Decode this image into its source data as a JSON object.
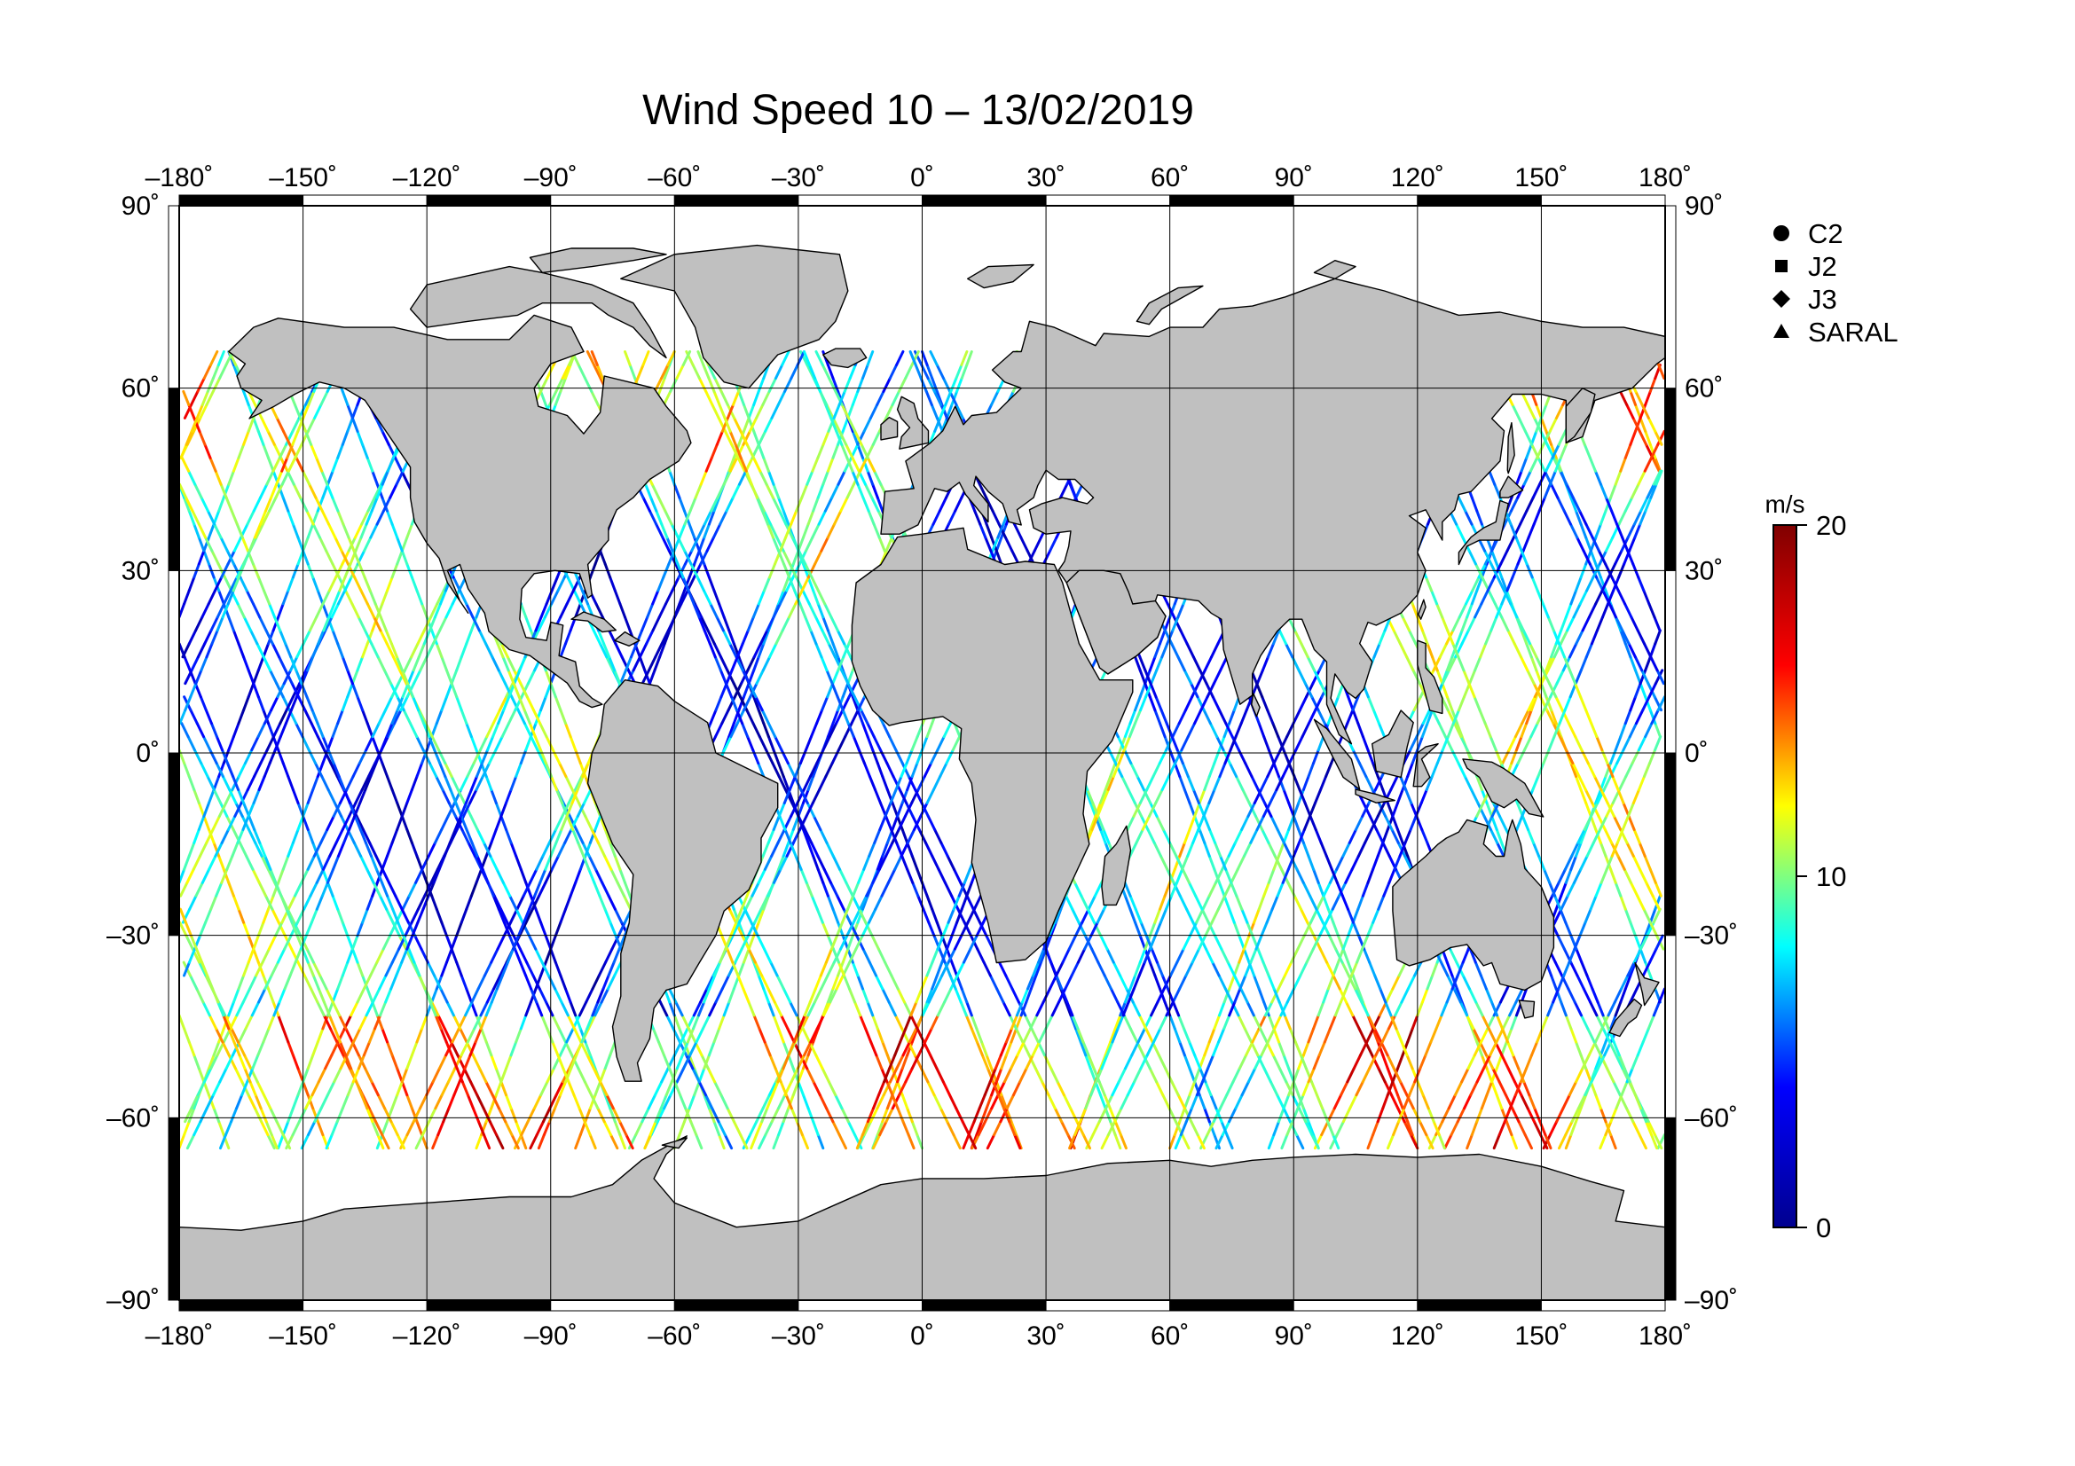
{
  "title": "Wind Speed 10 – 13/02/2019",
  "map": {
    "projection": "equirectangular",
    "lon_range": [
      -180,
      180
    ],
    "lat_range": [
      -90,
      90
    ],
    "lon_ticks": [
      -180,
      -150,
      -120,
      -90,
      -60,
      -30,
      0,
      30,
      60,
      90,
      120,
      150,
      180
    ],
    "lat_ticks": [
      -90,
      -60,
      -30,
      0,
      30,
      60,
      90
    ],
    "lon_tick_labels": [
      "–180˚",
      "–150˚",
      "–120˚",
      "–90˚",
      "–60˚",
      "–30˚",
      "0˚",
      "30˚",
      "60˚",
      "90˚",
      "120˚",
      "150˚",
      "180˚"
    ],
    "lat_tick_labels": [
      "–90˚",
      "–60˚",
      "–30˚",
      "0˚",
      "30˚",
      "60˚",
      "90˚"
    ],
    "grid": true,
    "land_color": "#c0c0c0",
    "coast_color": "#000000",
    "ocean_color": "#ffffff",
    "ice_edge_lat_south": -65
  },
  "legend": {
    "placement": "top-right",
    "items": [
      {
        "symbol": "circle",
        "label": "C2"
      },
      {
        "symbol": "square",
        "label": "J2"
      },
      {
        "symbol": "diamond",
        "label": "J3"
      },
      {
        "symbol": "triangle",
        "label": "SARAL"
      }
    ]
  },
  "colorbar": {
    "unit": "m/s",
    "min": 0,
    "max": 20,
    "tick_labels": [
      "0",
      "10",
      "20"
    ],
    "colormap": "jet",
    "stops": [
      "#00008f",
      "#0000ff",
      "#00ffff",
      "#ffff00",
      "#ff0000",
      "#800000"
    ]
  },
  "chart_data": {
    "type": "scatter",
    "title": "Wind Speed 10 – 13/02/2019",
    "xlabel": "",
    "ylabel": "",
    "xlim": [
      -180,
      180
    ],
    "ylim": [
      -90,
      90
    ],
    "color_variable": "wind speed (m/s)",
    "color_range": [
      0,
      20
    ],
    "series": [
      {
        "name": "C2"
      },
      {
        "name": "J2"
      },
      {
        "name": "J3"
      },
      {
        "name": "SARAL"
      }
    ],
    "note": "along-track altimeter wind speed samples rendered as colored ground tracks over ocean between approx. 65S and 65N"
  }
}
